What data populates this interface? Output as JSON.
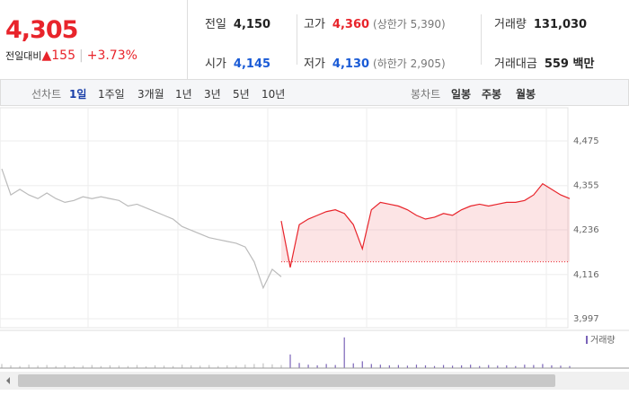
{
  "summary": {
    "price": "4,305",
    "change_label": "전일대비",
    "change": "155",
    "rate": "+3.73%",
    "items": [
      {
        "label": "전일",
        "value": "4,150"
      },
      {
        "label": "고가",
        "value": "4,360",
        "note": "(상한가 5,390)"
      },
      {
        "label": "거래량",
        "value": "131,030"
      },
      {
        "label": "시가",
        "value": "4,145"
      },
      {
        "label": "저가",
        "value": "4,130",
        "note": "(하한가 2,905)"
      },
      {
        "label": "거래대금",
        "value": "559 백만"
      }
    ]
  },
  "line_tabs": {
    "label": "선차트",
    "items": [
      "1일",
      "1주일",
      "3개월",
      "1년",
      "3년",
      "5년",
      "10년"
    ]
  },
  "candle_tabs": {
    "label": "봉차트",
    "items": [
      "일봉",
      "주봉",
      "월봉"
    ]
  },
  "chart_data": {
    "type": "line",
    "ylim": [
      3973,
      4545
    ],
    "yticks": [
      {
        "value": 4475,
        "label": "4,475"
      },
      {
        "value": 4355,
        "label": "4,355"
      },
      {
        "value": 4236,
        "label": "4,236"
      },
      {
        "value": 4116,
        "label": "4,116"
      },
      {
        "value": 3997,
        "label": "3,997"
      }
    ],
    "baseline": 4150,
    "series": [
      {
        "color": "#bbbbbb",
        "values": [
          4400,
          4330,
          4345,
          4330,
          4320,
          4335,
          4320,
          4310,
          4315,
          4325,
          4320,
          4325,
          4320,
          4315,
          4300,
          4305,
          4295,
          4285,
          4275,
          4265,
          4245,
          4235,
          4225,
          4215,
          4210,
          4205,
          4200,
          4190,
          4150,
          4080,
          4130,
          4110,
          null,
          null,
          null,
          null,
          null,
          null,
          null,
          null,
          null,
          null,
          null,
          null,
          null,
          null,
          null,
          null,
          null,
          null,
          null,
          null,
          null,
          null,
          null,
          null,
          null,
          null,
          null,
          null,
          null,
          null,
          null,
          null
        ]
      },
      {
        "color": "#e8242b",
        "values": [
          null,
          null,
          null,
          null,
          null,
          null,
          null,
          null,
          null,
          null,
          null,
          null,
          null,
          null,
          null,
          null,
          null,
          null,
          null,
          null,
          null,
          null,
          null,
          null,
          null,
          null,
          null,
          null,
          null,
          null,
          null,
          4260,
          4135,
          4250,
          4265,
          4275,
          4285,
          4290,
          4280,
          4250,
          4185,
          4290,
          4310,
          4305,
          4300,
          4290,
          4275,
          4265,
          4270,
          4280,
          4275,
          4290,
          4300,
          4305,
          4300,
          4305,
          4310,
          4310,
          4315,
          4330,
          4360,
          4345,
          4330,
          4320
        ]
      }
    ],
    "volume": {
      "label": "거래량",
      "ylim": [
        0,
        100
      ],
      "values": [
        12,
        8,
        6,
        10,
        7,
        9,
        6,
        8,
        5,
        7,
        9,
        6,
        8,
        7,
        6,
        9,
        5,
        8,
        7,
        6,
        10,
        8,
        7,
        9,
        6,
        8,
        7,
        10,
        12,
        14,
        11,
        9,
        40,
        15,
        10,
        8,
        12,
        9,
        90,
        14,
        20,
        12,
        10,
        8,
        9,
        7,
        10,
        8,
        6,
        9,
        7,
        8,
        10,
        6,
        9,
        7,
        8,
        6,
        10,
        9,
        12,
        8,
        7,
        6
      ]
    }
  }
}
